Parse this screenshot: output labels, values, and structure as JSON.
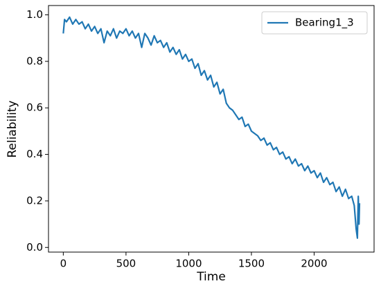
{
  "chart_data": {
    "type": "line",
    "xlabel": "Time",
    "ylabel": "Reliability",
    "x": [
      0,
      10,
      25,
      50,
      75,
      100,
      125,
      150,
      175,
      200,
      225,
      250,
      275,
      300,
      325,
      350,
      375,
      400,
      425,
      450,
      475,
      500,
      525,
      550,
      575,
      600,
      625,
      650,
      675,
      700,
      725,
      750,
      775,
      800,
      825,
      850,
      875,
      900,
      925,
      950,
      975,
      1000,
      1025,
      1050,
      1075,
      1100,
      1125,
      1150,
      1175,
      1200,
      1225,
      1250,
      1275,
      1300,
      1325,
      1350,
      1375,
      1400,
      1425,
      1450,
      1475,
      1500,
      1525,
      1550,
      1575,
      1600,
      1625,
      1650,
      1675,
      1700,
      1725,
      1750,
      1775,
      1800,
      1825,
      1850,
      1875,
      1900,
      1925,
      1950,
      1975,
      2000,
      2025,
      2050,
      2075,
      2100,
      2125,
      2150,
      2175,
      2200,
      2225,
      2250,
      2275,
      2300,
      2320,
      2335,
      2345,
      2352,
      2358,
      2362
    ],
    "series": [
      {
        "name": "Bearing1_3",
        "color": "#1f77b4",
        "values": [
          0.92,
          0.98,
          0.97,
          0.99,
          0.96,
          0.98,
          0.96,
          0.97,
          0.94,
          0.96,
          0.93,
          0.95,
          0.92,
          0.94,
          0.88,
          0.93,
          0.91,
          0.94,
          0.9,
          0.93,
          0.92,
          0.94,
          0.91,
          0.93,
          0.9,
          0.92,
          0.86,
          0.92,
          0.9,
          0.87,
          0.91,
          0.88,
          0.89,
          0.86,
          0.88,
          0.84,
          0.86,
          0.83,
          0.85,
          0.81,
          0.83,
          0.8,
          0.81,
          0.77,
          0.79,
          0.74,
          0.76,
          0.72,
          0.74,
          0.69,
          0.71,
          0.66,
          0.68,
          0.62,
          0.6,
          0.59,
          0.57,
          0.55,
          0.56,
          0.52,
          0.53,
          0.5,
          0.49,
          0.48,
          0.46,
          0.47,
          0.44,
          0.45,
          0.42,
          0.43,
          0.4,
          0.41,
          0.38,
          0.39,
          0.36,
          0.38,
          0.35,
          0.36,
          0.33,
          0.35,
          0.32,
          0.33,
          0.3,
          0.32,
          0.28,
          0.3,
          0.27,
          0.28,
          0.24,
          0.26,
          0.22,
          0.25,
          0.21,
          0.22,
          0.18,
          0.08,
          0.04,
          0.22,
          0.1,
          0.19
        ]
      }
    ],
    "xlim": [
      -118,
      2478
    ],
    "xticks": [
      0,
      500,
      1000,
      1500,
      2000
    ],
    "ylim": [
      -0.02,
      1.04
    ],
    "yticks": [
      {
        "value": 0,
        "label": "0.0"
      },
      0.2,
      0.4,
      0.6,
      0.8,
      {
        "value": 1,
        "label": "1.0"
      }
    ],
    "legend": "upper right"
  }
}
